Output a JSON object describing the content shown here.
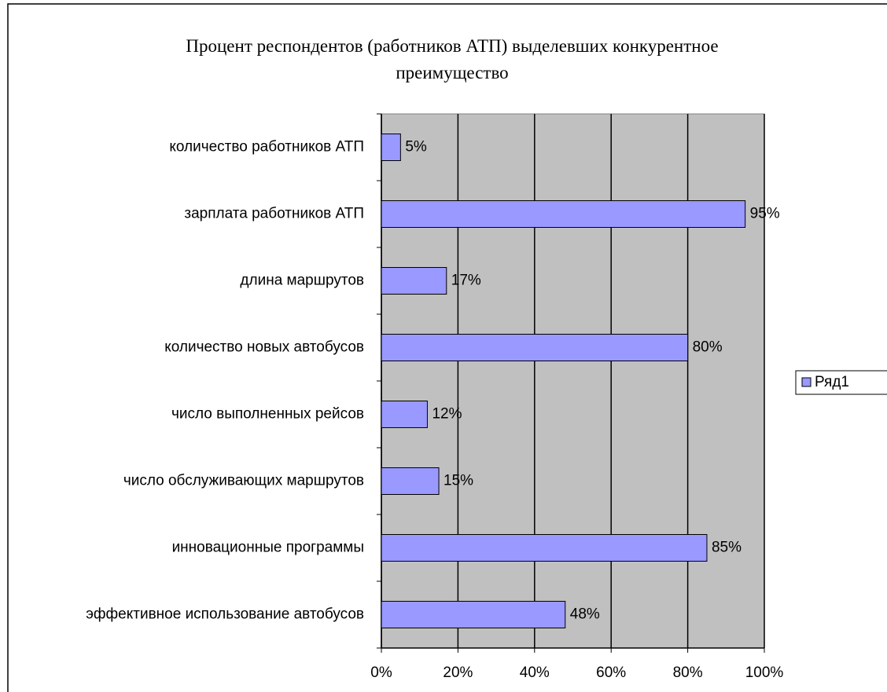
{
  "chart_data": {
    "type": "bar",
    "orientation": "horizontal",
    "title": "Процент респондентов (работников АТП) выделевших конкурентное преимущество",
    "categories": [
      "количество работников АТП",
      "зарплата работников АТП",
      "длина маршрутов",
      "количество новых автобусов",
      "число выполненных рейсов",
      "число обслуживающих маршрутов",
      "инновационные программы",
      "эффективное использование автобусов"
    ],
    "series": [
      {
        "name": "Ряд1",
        "color": "#9999ff",
        "values": [
          5,
          95,
          17,
          80,
          12,
          15,
          85,
          48
        ],
        "value_labels": [
          "5%",
          "95%",
          "17%",
          "80%",
          "12%",
          "15%",
          "85%",
          "48%"
        ]
      }
    ],
    "xlim": [
      0,
      100
    ],
    "xticks": [
      {
        "value": 0,
        "label": "0%"
      },
      {
        "value": 20,
        "label": "20%"
      },
      {
        "value": 40,
        "label": "40%"
      },
      {
        "value": 60,
        "label": "60%"
      },
      {
        "value": 80,
        "label": "80%"
      },
      {
        "value": 100,
        "label": "100%"
      }
    ],
    "grid": true,
    "legend": "right"
  }
}
